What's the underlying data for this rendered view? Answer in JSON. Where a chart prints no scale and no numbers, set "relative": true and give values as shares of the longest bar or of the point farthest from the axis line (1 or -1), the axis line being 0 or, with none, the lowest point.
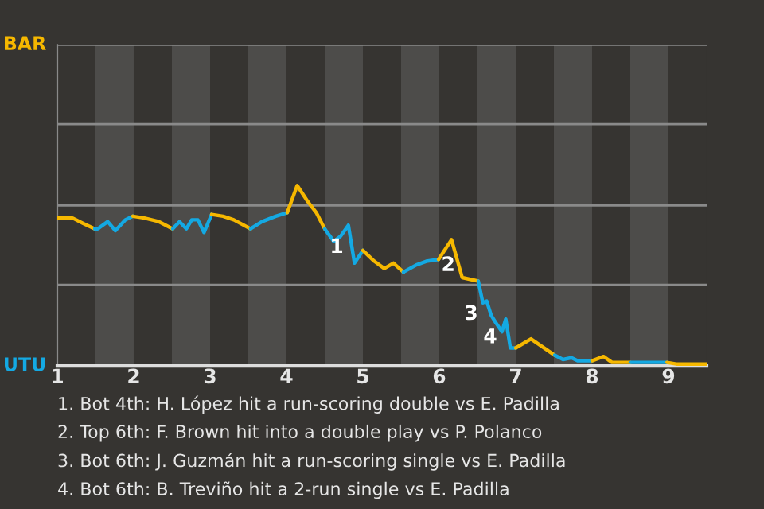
{
  "chart_data": {
    "type": "line",
    "relative": true,
    "series": [
      {
        "color": "#f6b800",
        "x": [
          1.0,
          1.2,
          1.34,
          1.49
        ],
        "values": [
          0.82,
          0.82,
          0.79,
          0.76
        ]
      },
      {
        "color": "#14a9e3",
        "x": [
          1.49,
          1.53,
          1.66,
          1.76,
          1.89,
          1.99
        ],
        "values": [
          0.76,
          0.76,
          0.8,
          0.75,
          0.81,
          0.83
        ]
      },
      {
        "color": "#f6b800",
        "x": [
          1.99,
          2.14,
          2.33,
          2.51
        ],
        "values": [
          0.83,
          0.82,
          0.8,
          0.76
        ]
      },
      {
        "color": "#14a9e3",
        "x": [
          2.51,
          2.6,
          2.69,
          2.76,
          2.84,
          2.92,
          3.02
        ],
        "values": [
          0.76,
          0.8,
          0.76,
          0.81,
          0.81,
          0.74,
          0.84
        ]
      },
      {
        "color": "#f6b800",
        "x": [
          3.02,
          3.17,
          3.31,
          3.53
        ],
        "values": [
          0.84,
          0.83,
          0.81,
          0.76
        ]
      },
      {
        "color": "#14a9e3",
        "x": [
          3.53,
          3.68,
          3.86,
          4.01
        ],
        "values": [
          0.76,
          0.8,
          0.83,
          0.85
        ]
      },
      {
        "color": "#f6b800",
        "x": [
          4.01,
          4.14,
          4.28,
          4.39,
          4.5
        ],
        "values": [
          0.85,
          1,
          0.91,
          0.85,
          0.76
        ]
      },
      {
        "color": "#14a9e3",
        "x": [
          4.5,
          4.62,
          4.71,
          4.81,
          4.89,
          5.0
        ],
        "values": [
          0.76,
          0.69,
          0.72,
          0.78,
          0.57,
          0.64
        ]
      },
      {
        "color": "#f6b800",
        "x": [
          5.0,
          5.15,
          5.28,
          5.4,
          5.53
        ],
        "values": [
          0.64,
          0.58,
          0.54,
          0.57,
          0.52
        ]
      },
      {
        "color": "#14a9e3",
        "x": [
          5.53,
          5.7,
          5.83,
          5.99
        ],
        "values": [
          0.52,
          0.56,
          0.58,
          0.59
        ]
      },
      {
        "color": "#f6b800",
        "x": [
          5.99,
          6.16,
          6.3,
          6.51
        ],
        "values": [
          0.59,
          0.7,
          0.49,
          0.47
        ]
      },
      {
        "color": "#14a9e3",
        "x": [
          6.51,
          6.57,
          6.62,
          6.68,
          6.74,
          6.82,
          6.87,
          6.93,
          7.0
        ],
        "values": [
          0.47,
          0.35,
          0.36,
          0.28,
          0.24,
          0.19,
          0.26,
          0.1,
          0.1
        ]
      },
      {
        "color": "#f6b800",
        "x": [
          7.0,
          7.2,
          7.51
        ],
        "values": [
          0.1,
          0.15,
          0.06
        ]
      },
      {
        "color": "#14a9e3",
        "x": [
          7.51,
          7.62,
          7.73,
          7.81,
          8.0
        ],
        "values": [
          0.06,
          0.036,
          0.046,
          0.029,
          0.029
        ]
      },
      {
        "color": "#f6b800",
        "x": [
          8.0,
          8.15,
          8.26,
          8.5
        ],
        "values": [
          0.029,
          0.053,
          0.02,
          0.02
        ]
      },
      {
        "color": "#14a9e3",
        "x": [
          8.5,
          8.98
        ],
        "values": [
          0.02,
          0.02
        ]
      },
      {
        "color": "#f6b800",
        "x": [
          8.98,
          9.1,
          9.5
        ],
        "values": [
          0.02,
          0.011,
          0.011
        ]
      }
    ],
    "xlim": [
      1,
      9.5
    ],
    "xticks": [
      1,
      2,
      3,
      4,
      5,
      6,
      7,
      8,
      9
    ],
    "ref_lines": [
      {
        "axis": "y",
        "value": 0.45,
        "color": "#8a8a8a"
      },
      {
        "axis": "y",
        "value": 0.89,
        "color": "#8a8a8a"
      },
      {
        "axis": "y",
        "value": 1.34,
        "color": "#8a8a8a"
      },
      {
        "axis": "y",
        "value": 1.78,
        "color": "#8a8a8a"
      }
    ],
    "bands": [
      {
        "axis": "x",
        "from": 1.5,
        "to": 2,
        "color": "#4d4c4a"
      },
      {
        "axis": "x",
        "from": 2.5,
        "to": 3,
        "color": "#4d4c4a"
      },
      {
        "axis": "x",
        "from": 3.5,
        "to": 4,
        "color": "#4d4c4a"
      },
      {
        "axis": "x",
        "from": 4.5,
        "to": 5,
        "color": "#4d4c4a"
      },
      {
        "axis": "x",
        "from": 5.5,
        "to": 6,
        "color": "#4d4c4a"
      },
      {
        "axis": "x",
        "from": 6.5,
        "to": 7,
        "color": "#4d4c4a"
      },
      {
        "axis": "x",
        "from": 7.5,
        "to": 8,
        "color": "#4d4c4a"
      },
      {
        "axis": "x",
        "from": 8.5,
        "to": 9,
        "color": "#4d4c4a"
      }
    ],
    "annotations": [
      "BAR",
      "UTU",
      {
        "text": "1",
        "x": 4.95,
        "y": 0.62
      },
      {
        "text": "2",
        "x": 6.41,
        "y": 0.52
      },
      {
        "text": "3",
        "x": 6.71,
        "y": 0.25
      },
      {
        "text": "4",
        "x": 6.96,
        "y": 0.12
      },
      "1. Bot 4th: H. López hit a run-scoring double vs E. Padilla",
      "2. Top 6th: F. Brown hit into a double play vs P. Polanco",
      "3. Bot 6th: J. Guzmán hit a run-scoring single vs E. Padilla",
      "4. Bot 6th: B. Treviño hit a 2-run single vs E. Padilla"
    ],
    "marker": "none",
    "line_style": "solid"
  }
}
